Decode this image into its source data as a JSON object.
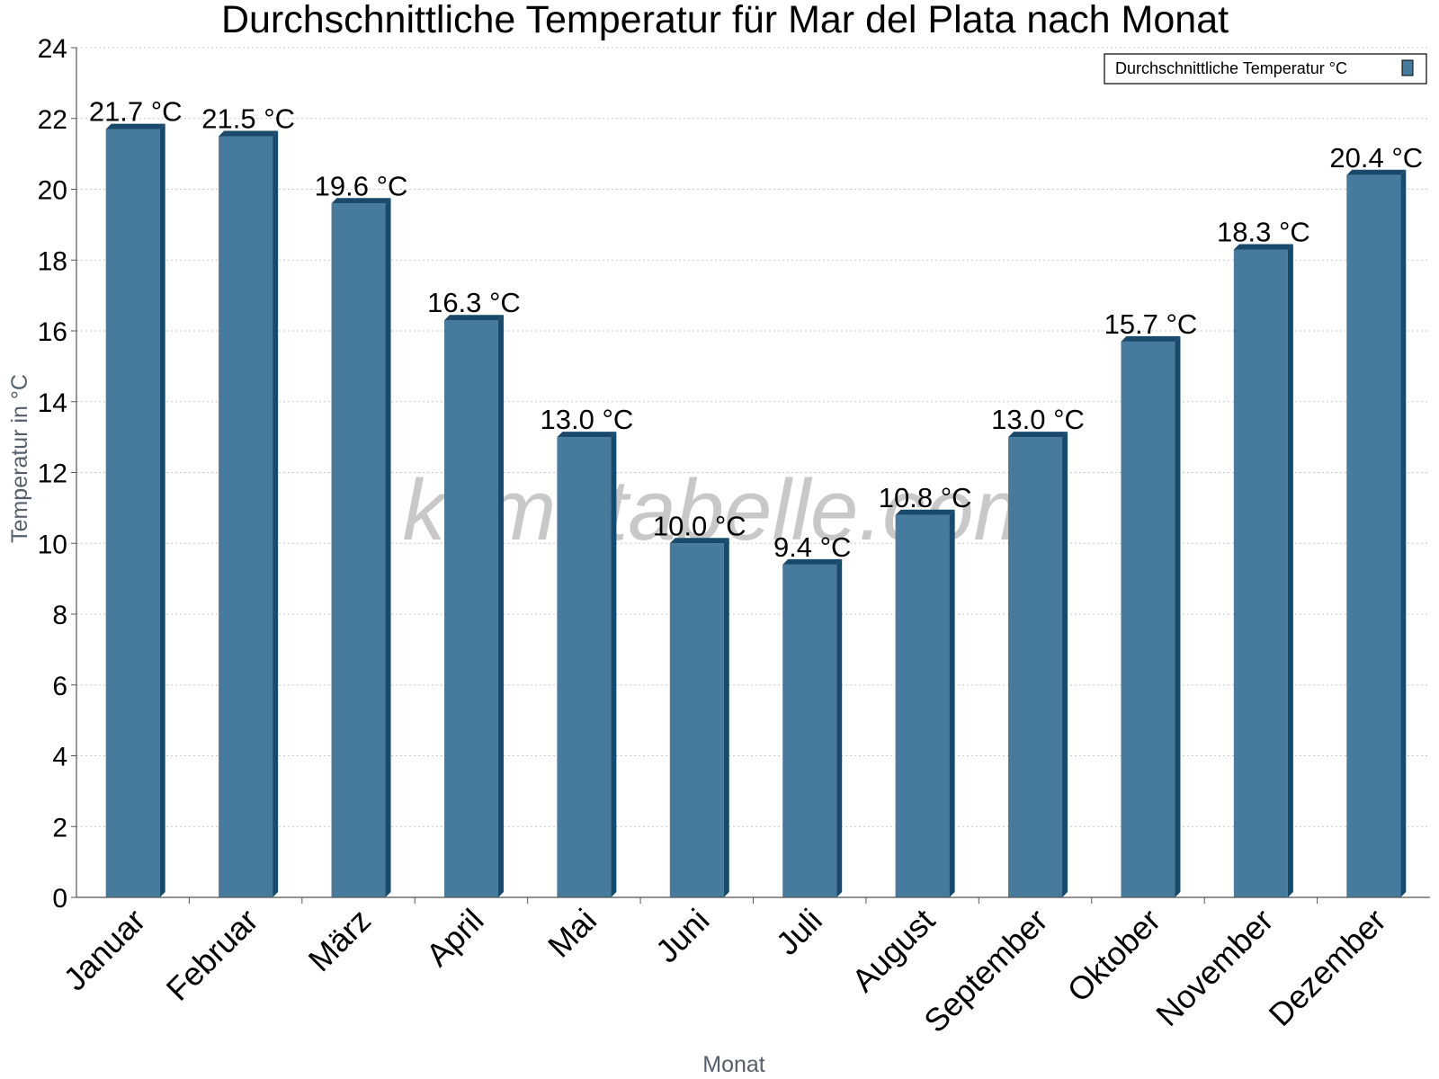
{
  "chart_data": {
    "type": "bar",
    "title": "Durchschnittliche Temperatur für Mar del Plata nach Monat",
    "xlabel": "Monat",
    "ylabel": "Temperatur in °C",
    "categories": [
      "Januar",
      "Februar",
      "März",
      "April",
      "Mai",
      "Juni",
      "Juli",
      "August",
      "September",
      "Oktober",
      "November",
      "Dezember"
    ],
    "series": [
      {
        "name": "Durchschnittliche Temperatur °C",
        "values": [
          21.7,
          21.5,
          19.6,
          16.3,
          13.0,
          10.0,
          9.4,
          10.8,
          13.0,
          15.7,
          18.3,
          20.4
        ],
        "data_labels": [
          "21.7 °C",
          "21.5 °C",
          "19.6 °C",
          "16.3 °C",
          "13.0 °C",
          "10.0 °C",
          "9.4 °C",
          "10.8 °C",
          "13.0 °C",
          "15.7 °C",
          "18.3 °C",
          "20.4 °C"
        ],
        "color": "#467b9d",
        "edge_color": "#1a4a6b"
      }
    ],
    "ylim": [
      0,
      24
    ],
    "yticks": [
      0,
      2,
      4,
      6,
      8,
      10,
      12,
      14,
      16,
      18,
      20,
      22,
      24
    ],
    "grid": true,
    "legend_position": "top-right",
    "watermark": "klimatabelle.com"
  }
}
